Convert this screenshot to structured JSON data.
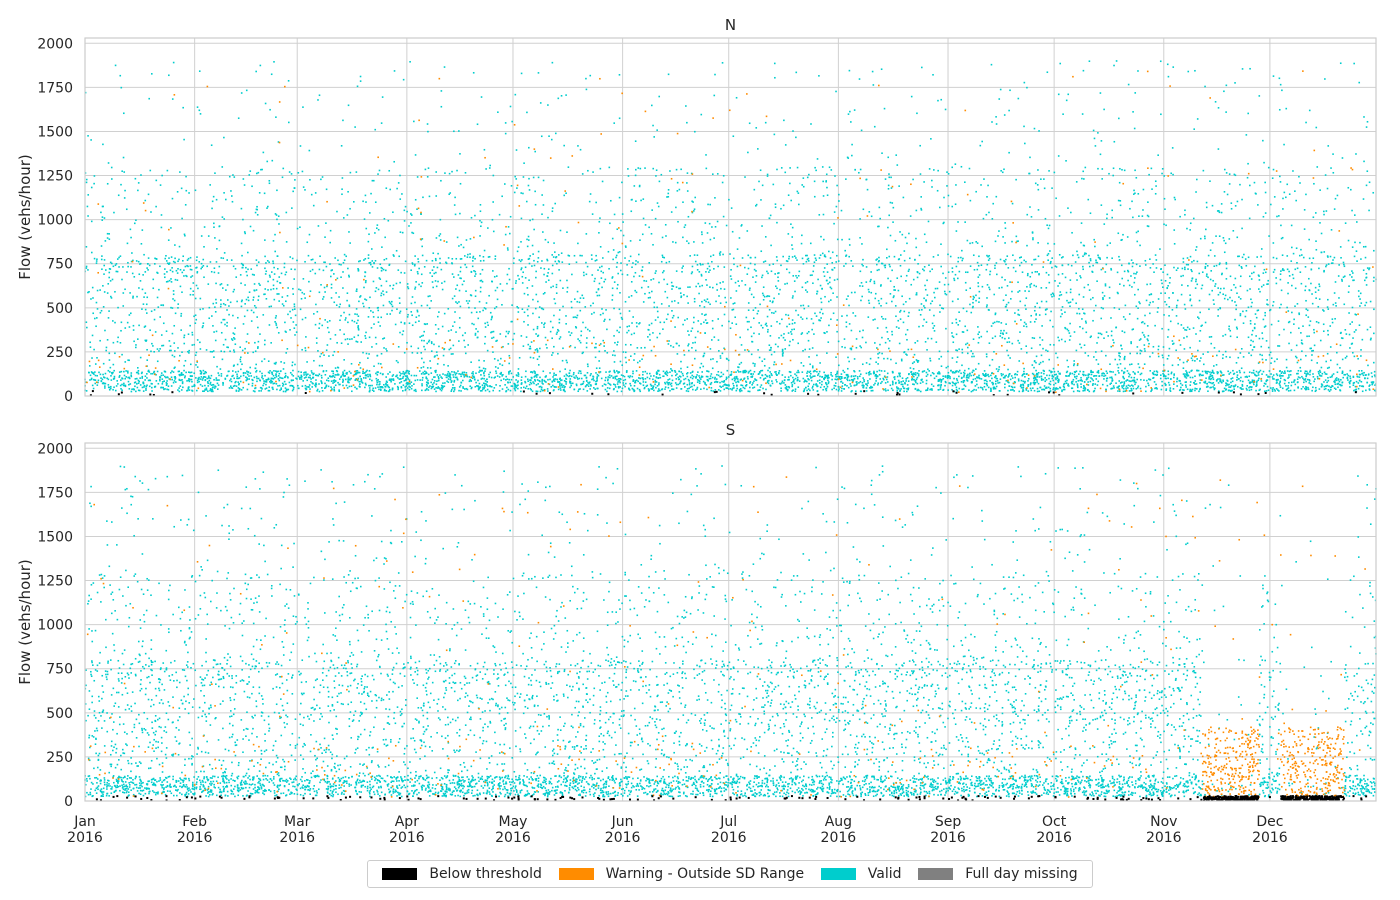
{
  "chart_data": [
    {
      "type": "scatter",
      "title": "N",
      "ylabel": "Flow (vehs/hour)",
      "xlabel": "",
      "x_range": [
        "2016-01-01",
        "2016-12-31"
      ],
      "ylim": [
        0,
        2030
      ],
      "yticks": [
        0,
        250,
        500,
        750,
        1000,
        1250,
        1500,
        1750,
        2000
      ],
      "grid": true,
      "series": [
        {
          "name": "Below threshold",
          "color": "#000000",
          "approx_points": 40
        },
        {
          "name": "Warning - Outside SD Range",
          "color": "#ff8c00",
          "approx_points": 260
        },
        {
          "name": "Valid",
          "color": "#00cdcd",
          "approx_points": 8000
        },
        {
          "name": "Full day missing",
          "color": "#808080",
          "approx_points": 0
        }
      ]
    },
    {
      "type": "scatter",
      "title": "S",
      "ylabel": "Flow (vehs/hour)",
      "xlabel": "",
      "x_range": [
        "2016-01-01",
        "2016-12-31"
      ],
      "ylim": [
        0,
        2030
      ],
      "yticks": [
        0,
        250,
        500,
        750,
        1000,
        1250,
        1500,
        1750,
        2000
      ],
      "grid": true,
      "series": [
        {
          "name": "Below threshold",
          "color": "#000000",
          "approx_points": 600
        },
        {
          "name": "Warning - Outside SD Range",
          "color": "#ff8c00",
          "approx_points": 900
        },
        {
          "name": "Valid",
          "color": "#00cdcd",
          "approx_points": 8000
        },
        {
          "name": "Full day missing",
          "color": "#808080",
          "approx_points": 0
        }
      ]
    }
  ],
  "x_axis": {
    "ticks": [
      {
        "month": "Jan",
        "year": "2016",
        "date": "2016-01-01"
      },
      {
        "month": "Feb",
        "year": "2016",
        "date": "2016-02-01"
      },
      {
        "month": "Mar",
        "year": "2016",
        "date": "2016-03-01"
      },
      {
        "month": "Apr",
        "year": "2016",
        "date": "2016-04-01"
      },
      {
        "month": "May",
        "year": "2016",
        "date": "2016-05-01"
      },
      {
        "month": "Jun",
        "year": "2016",
        "date": "2016-06-01"
      },
      {
        "month": "Jul",
        "year": "2016",
        "date": "2016-07-01"
      },
      {
        "month": "Aug",
        "year": "2016",
        "date": "2016-08-01"
      },
      {
        "month": "Sep",
        "year": "2016",
        "date": "2016-09-01"
      },
      {
        "month": "Oct",
        "year": "2016",
        "date": "2016-10-01"
      },
      {
        "month": "Nov",
        "year": "2016",
        "date": "2016-11-01"
      },
      {
        "month": "Dec",
        "year": "2016",
        "date": "2016-12-01"
      }
    ]
  },
  "legend": {
    "placement": "bottom-center",
    "items": [
      {
        "label": "Below threshold",
        "color": "#000000"
      },
      {
        "label": "Warning - Outside SD Range",
        "color": "#ff8c00"
      },
      {
        "label": "Valid",
        "color": "#00cdcd"
      },
      {
        "label": "Full day missing",
        "color": "#808080"
      }
    ]
  }
}
